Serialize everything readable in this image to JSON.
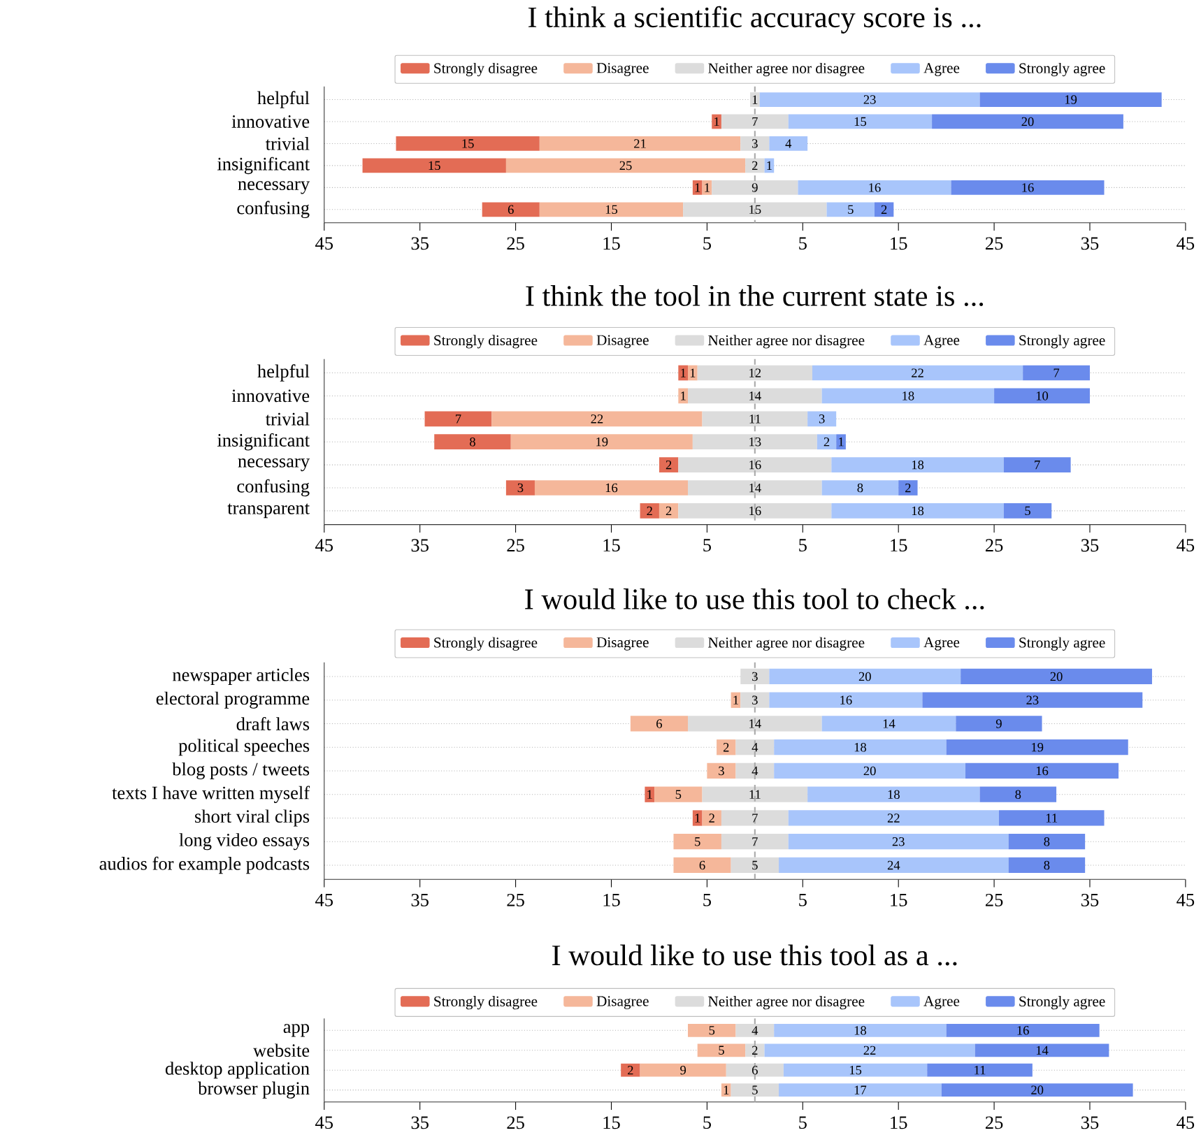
{
  "chart_data": [
    {
      "type": "bar",
      "orientation": "horizontal",
      "title": "I think a scientific accuracy score is ...",
      "categories": [
        "helpful",
        "innovative",
        "trivial",
        "insignificant",
        "necessary",
        "confusing"
      ],
      "series": [
        {
          "name": "Strongly disagree",
          "color": "#e36c55",
          "values": [
            null,
            1,
            15,
            15,
            1,
            6
          ],
          "base": [
            null,
            -4.5,
            -37.5,
            -41,
            -6.5,
            -28.5
          ]
        },
        {
          "name": "Disagree",
          "color": "#f5b79a",
          "values": [
            null,
            null,
            21,
            25,
            1,
            15
          ],
          "base": [
            null,
            null,
            -22.5,
            -26,
            -5.5,
            -22.5
          ]
        },
        {
          "name": "Neither agree nor disagree",
          "color": "#dcdcdc",
          "values": [
            1,
            7,
            3,
            2,
            9,
            15
          ],
          "base": [
            -0.5,
            -3.5,
            -1.5,
            -1,
            -4.5,
            -7.5
          ]
        },
        {
          "name": "Agree",
          "color": "#a8c5fb",
          "values": [
            23,
            15,
            4,
            1,
            16,
            5
          ],
          "base": [
            0.5,
            3.5,
            1.5,
            1,
            4.5,
            7.5
          ]
        },
        {
          "name": "Strongly agree",
          "color": "#6a8bec",
          "values": [
            19,
            20,
            null,
            null,
            16,
            2
          ],
          "base": [
            23.5,
            18.5,
            null,
            null,
            20.5,
            12.5
          ]
        }
      ],
      "xlim": [
        -45,
        45
      ],
      "xticks": [
        {
          "value": -45,
          "label": "45"
        },
        {
          "value": -35,
          "label": "35"
        },
        {
          "value": -25,
          "label": "25"
        },
        {
          "value": -15,
          "label": "15"
        },
        {
          "value": -5,
          "label": "5"
        },
        {
          "value": 5,
          "label": "5"
        },
        {
          "value": 15,
          "label": "15"
        },
        {
          "value": 25,
          "label": "25"
        },
        {
          "value": 35,
          "label": "35"
        },
        {
          "value": 45,
          "label": "45"
        }
      ],
      "grid": "y",
      "legend": "top",
      "data_labels": true,
      "ref_lines": [
        {
          "axis": "x",
          "value": 0,
          "color": "#aaaaaa",
          "line_style": "dashed"
        }
      ]
    },
    {
      "type": "bar",
      "orientation": "horizontal",
      "title": "I think the tool in the current state is ...",
      "categories": [
        "helpful",
        "innovative",
        "trivial",
        "insignificant",
        "necessary",
        "confusing",
        "transparent"
      ],
      "series": [
        {
          "name": "Strongly disagree",
          "color": "#e36c55",
          "values": [
            1,
            null,
            7,
            8,
            2,
            3,
            2
          ],
          "base": [
            -8,
            null,
            -34.5,
            -33.5,
            -10,
            -26,
            -12
          ]
        },
        {
          "name": "Disagree",
          "color": "#f5b79a",
          "values": [
            1,
            1,
            22,
            19,
            null,
            16,
            2
          ],
          "base": [
            -7,
            -8,
            -27.5,
            -25.5,
            null,
            -23,
            -10
          ]
        },
        {
          "name": "Neither agree nor disagree",
          "color": "#dcdcdc",
          "values": [
            12,
            14,
            11,
            13,
            16,
            14,
            16
          ],
          "base": [
            -6,
            -7,
            -5.5,
            -6.5,
            -8,
            -7,
            -8
          ]
        },
        {
          "name": "Agree",
          "color": "#a8c5fb",
          "values": [
            22,
            18,
            3,
            2,
            18,
            8,
            18
          ],
          "base": [
            6,
            7,
            5.5,
            6.5,
            8,
            7,
            8
          ]
        },
        {
          "name": "Strongly agree",
          "color": "#6a8bec",
          "values": [
            7,
            10,
            null,
            1,
            7,
            2,
            5
          ],
          "base": [
            28,
            25,
            null,
            8.5,
            26,
            15,
            26
          ]
        }
      ],
      "xlim": [
        -45,
        45
      ],
      "xticks": [
        {
          "value": -45,
          "label": "45"
        },
        {
          "value": -35,
          "label": "35"
        },
        {
          "value": -25,
          "label": "25"
        },
        {
          "value": -15,
          "label": "15"
        },
        {
          "value": -5,
          "label": "5"
        },
        {
          "value": 5,
          "label": "5"
        },
        {
          "value": 15,
          "label": "15"
        },
        {
          "value": 25,
          "label": "25"
        },
        {
          "value": 35,
          "label": "35"
        },
        {
          "value": 45,
          "label": "45"
        }
      ],
      "grid": "y",
      "legend": "top",
      "data_labels": true,
      "ref_lines": [
        {
          "axis": "x",
          "value": 0,
          "color": "#aaaaaa",
          "line_style": "dashed"
        }
      ]
    },
    {
      "type": "bar",
      "orientation": "horizontal",
      "title": "I would like to use this tool to check ...",
      "categories": [
        "newspaper articles",
        "electoral programme",
        "draft laws",
        "political speeches",
        "blog posts / tweets",
        "texts I have written myself",
        "short viral clips",
        "long video essays",
        "audios for example podcasts"
      ],
      "series": [
        {
          "name": "Strongly disagree",
          "color": "#e36c55",
          "values": [
            null,
            null,
            null,
            null,
            null,
            1,
            1,
            null,
            null
          ],
          "base": [
            null,
            null,
            null,
            null,
            null,
            -11.5,
            -6.5,
            null,
            null
          ]
        },
        {
          "name": "Disagree",
          "color": "#f5b79a",
          "values": [
            null,
            1,
            6,
            2,
            3,
            5,
            2,
            5,
            6
          ],
          "base": [
            null,
            -2.5,
            -13,
            -4,
            -5,
            -10.5,
            -5.5,
            -8.5,
            -8.5
          ]
        },
        {
          "name": "Neither agree nor disagree",
          "color": "#dcdcdc",
          "values": [
            3,
            3,
            14,
            4,
            4,
            11,
            7,
            7,
            5
          ],
          "base": [
            -1.5,
            -1.5,
            -7,
            -2,
            -2,
            -5.5,
            -3.5,
            -3.5,
            -2.5
          ]
        },
        {
          "name": "Agree",
          "color": "#a8c5fb",
          "values": [
            20,
            16,
            14,
            18,
            20,
            18,
            22,
            23,
            24
          ],
          "base": [
            1.5,
            1.5,
            7,
            2,
            2,
            5.5,
            3.5,
            3.5,
            2.5
          ]
        },
        {
          "name": "Strongly agree",
          "color": "#6a8bec",
          "values": [
            20,
            23,
            9,
            19,
            16,
            8,
            11,
            8,
            8
          ],
          "base": [
            21.5,
            17.5,
            21,
            20,
            22,
            23.5,
            25.5,
            26.5,
            26.5
          ]
        }
      ],
      "xlim": [
        -45,
        45
      ],
      "xticks": [
        {
          "value": -45,
          "label": "45"
        },
        {
          "value": -35,
          "label": "35"
        },
        {
          "value": -25,
          "label": "25"
        },
        {
          "value": -15,
          "label": "15"
        },
        {
          "value": -5,
          "label": "5"
        },
        {
          "value": 5,
          "label": "5"
        },
        {
          "value": 15,
          "label": "15"
        },
        {
          "value": 25,
          "label": "25"
        },
        {
          "value": 35,
          "label": "35"
        },
        {
          "value": 45,
          "label": "45"
        }
      ],
      "grid": "y",
      "legend": "top",
      "data_labels": true,
      "ref_lines": [
        {
          "axis": "x",
          "value": 0,
          "color": "#aaaaaa",
          "line_style": "dashed"
        }
      ]
    },
    {
      "type": "bar",
      "orientation": "horizontal",
      "title": "I would like to use this tool as a ...",
      "categories": [
        "app",
        "website",
        "desktop application",
        "browser plugin"
      ],
      "series": [
        {
          "name": "Strongly disagree",
          "color": "#e36c55",
          "values": [
            null,
            null,
            2,
            null
          ],
          "base": [
            null,
            null,
            -14,
            null
          ]
        },
        {
          "name": "Disagree",
          "color": "#f5b79a",
          "values": [
            5,
            5,
            9,
            1
          ],
          "base": [
            -7,
            -6,
            -12,
            -3.5
          ]
        },
        {
          "name": "Neither agree nor disagree",
          "color": "#dcdcdc",
          "values": [
            4,
            2,
            6,
            5
          ],
          "base": [
            -2,
            -1,
            -3,
            -2.5
          ]
        },
        {
          "name": "Agree",
          "color": "#a8c5fb",
          "values": [
            18,
            22,
            15,
            17
          ],
          "base": [
            2,
            1,
            3,
            2.5
          ]
        },
        {
          "name": "Strongly agree",
          "color": "#6a8bec",
          "values": [
            16,
            14,
            11,
            20
          ],
          "base": [
            20,
            23,
            18,
            19.5
          ]
        }
      ],
      "xlim": [
        -45,
        45
      ],
      "xticks": [
        {
          "value": -45,
          "label": "45"
        },
        {
          "value": -35,
          "label": "35"
        },
        {
          "value": -25,
          "label": "25"
        },
        {
          "value": -15,
          "label": "15"
        },
        {
          "value": -5,
          "label": "5"
        },
        {
          "value": 5,
          "label": "5"
        },
        {
          "value": 15,
          "label": "15"
        },
        {
          "value": 25,
          "label": "25"
        },
        {
          "value": 35,
          "label": "35"
        },
        {
          "value": 45,
          "label": "45"
        }
      ],
      "grid": "y",
      "legend": "top",
      "data_labels": true,
      "ref_lines": [
        {
          "axis": "x",
          "value": 0,
          "color": "#aaaaaa",
          "line_style": "dashed"
        }
      ]
    }
  ]
}
